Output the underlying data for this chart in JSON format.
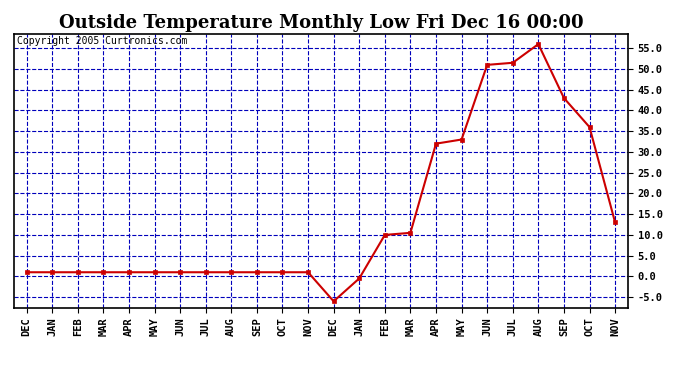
{
  "title": "Outside Temperature Monthly Low Fri Dec 16 00:00",
  "copyright": "Copyright 2005 Curtronics.com",
  "x_labels": [
    "DEC",
    "JAN",
    "FEB",
    "MAR",
    "APR",
    "MAY",
    "JUN",
    "JUL",
    "AUG",
    "SEP",
    "OCT",
    "NOV",
    "DEC",
    "JAN",
    "FEB",
    "MAR",
    "APR",
    "MAY",
    "JUN",
    "JUL",
    "AUG",
    "SEP",
    "OCT",
    "NOV"
  ],
  "y_values": [
    1.0,
    1.0,
    1.0,
    1.0,
    1.0,
    1.0,
    1.0,
    1.0,
    1.0,
    1.0,
    1.0,
    1.0,
    -6.0,
    -0.5,
    10.0,
    10.5,
    32.0,
    33.0,
    51.0,
    51.5,
    56.0,
    43.0,
    36.0,
    13.0
  ],
  "line_color": "#cc0000",
  "marker": "s",
  "marker_size": 3,
  "marker_color": "#cc0000",
  "plot_bg_color": "#ffffff",
  "grid_color": "#0000bb",
  "grid_style": "--",
  "ylim": [
    -7.5,
    58.5
  ],
  "yticks": [
    -5.0,
    0.0,
    5.0,
    10.0,
    15.0,
    20.0,
    25.0,
    30.0,
    35.0,
    40.0,
    45.0,
    50.0,
    55.0
  ],
  "title_fontsize": 13,
  "copyright_fontsize": 7,
  "tick_fontsize": 7.5
}
